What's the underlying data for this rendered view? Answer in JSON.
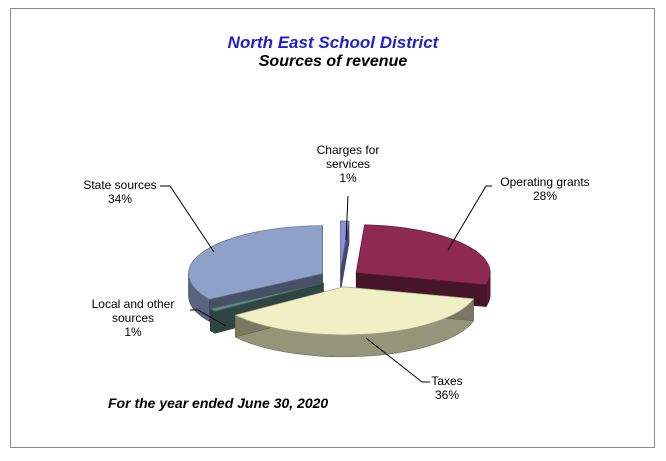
{
  "header": {
    "title": "North East School District",
    "subtitle": "Sources of revenue"
  },
  "footnote": "For the year ended June 30, 2020",
  "colors": {
    "title": "#1f1fd0",
    "charges": "#8a8fd6",
    "operating": "#8e2a4f",
    "taxes": "#f1f0c4",
    "local": "#5f8a85",
    "state": "#8ea2c9"
  },
  "chart_data": {
    "type": "pie",
    "title": "North East School District",
    "subtitle": "Sources of revenue",
    "slices": [
      {
        "name": "Charges for services",
        "value": 1,
        "label_lines": [
          "Charges for",
          "services"
        ],
        "pct_label": "1%"
      },
      {
        "name": "Operating grants",
        "value": 28,
        "label_lines": [
          "Operating grants"
        ],
        "pct_label": "28%"
      },
      {
        "name": "Taxes",
        "value": 36,
        "label_lines": [
          "Taxes"
        ],
        "pct_label": "36%"
      },
      {
        "name": "Local and other sources",
        "value": 1,
        "label_lines": [
          "Local and other",
          "sources"
        ],
        "pct_label": "1%"
      },
      {
        "name": "State sources",
        "value": 34,
        "label_lines": [
          "State sources"
        ],
        "pct_label": "34%"
      }
    ],
    "exploded": true,
    "style": "3d"
  }
}
